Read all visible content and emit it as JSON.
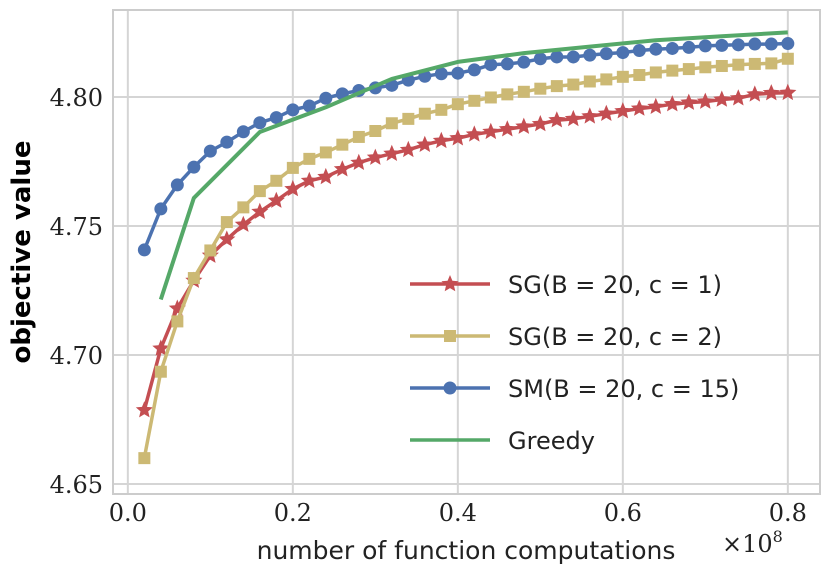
{
  "chart_data": {
    "type": "line",
    "title": "",
    "xlabel": "number of function computations",
    "x_offset_label": "×10",
    "x_offset_exponent": "8",
    "ylabel": "objective value",
    "xlim": [
      -0.018,
      0.839
    ],
    "ylim": [
      4.6461,
      4.8337
    ],
    "xticks": [
      0.0,
      0.2,
      0.4,
      0.6,
      0.8
    ],
    "xtick_labels": [
      "0.0",
      "0.2",
      "0.4",
      "0.6",
      "0.8"
    ],
    "yticks": [
      4.65,
      4.7,
      4.75,
      4.8
    ],
    "ytick_labels": [
      "4.65",
      "4.70",
      "4.75",
      "4.80"
    ],
    "grid": true,
    "legend_placement": "bottom-right",
    "series": [
      {
        "name": "SG(B = 20, c = 1)",
        "color": "#c44e52",
        "marker": "star",
        "x": [
          0.02,
          0.04,
          0.06,
          0.08,
          0.1,
          0.12,
          0.14,
          0.16,
          0.18,
          0.2,
          0.22,
          0.24,
          0.26,
          0.28,
          0.3,
          0.32,
          0.34,
          0.36,
          0.38,
          0.4,
          0.42,
          0.44,
          0.46,
          0.48,
          0.5,
          0.52,
          0.54,
          0.56,
          0.58,
          0.6,
          0.62,
          0.64,
          0.66,
          0.68,
          0.7,
          0.72,
          0.74,
          0.76,
          0.78,
          0.8
        ],
        "y": [
          4.6786,
          4.7025,
          4.718,
          4.7288,
          4.7385,
          4.7448,
          4.7505,
          4.7555,
          4.7598,
          4.7643,
          4.7675,
          4.769,
          4.772,
          4.7745,
          4.7765,
          4.778,
          4.7795,
          4.7815,
          4.783,
          4.784,
          4.7855,
          4.7865,
          4.7875,
          4.7885,
          4.7895,
          4.791,
          4.7915,
          4.7925,
          4.7935,
          4.7945,
          4.7955,
          4.7962,
          4.7972,
          4.7978,
          4.7982,
          4.799,
          4.7995,
          4.801,
          4.8015,
          4.8016
        ]
      },
      {
        "name": "SG(B = 20, c = 2)",
        "color": "#ccb974",
        "marker": "square",
        "x": [
          0.02,
          0.04,
          0.06,
          0.08,
          0.1,
          0.12,
          0.14,
          0.16,
          0.18,
          0.2,
          0.22,
          0.24,
          0.26,
          0.28,
          0.3,
          0.32,
          0.34,
          0.36,
          0.38,
          0.4,
          0.42,
          0.44,
          0.46,
          0.48,
          0.5,
          0.52,
          0.54,
          0.56,
          0.58,
          0.6,
          0.62,
          0.64,
          0.66,
          0.68,
          0.7,
          0.72,
          0.74,
          0.76,
          0.78,
          0.8
        ],
        "y": [
          4.66,
          4.6935,
          4.713,
          4.7298,
          4.7405,
          4.7515,
          4.7572,
          4.7635,
          4.7675,
          4.7725,
          4.776,
          4.7785,
          4.7815,
          4.7845,
          4.7868,
          4.7898,
          4.7915,
          4.7935,
          4.795,
          4.7972,
          4.7985,
          4.7998,
          4.801,
          4.802,
          4.8032,
          4.8042,
          4.8048,
          4.806,
          4.8068,
          4.8078,
          4.8085,
          4.8095,
          4.8102,
          4.8108,
          4.8115,
          4.812,
          4.8125,
          4.8128,
          4.813,
          4.8148
        ]
      },
      {
        "name": "SM(B = 20, c = 15)",
        "color": "#4c72b0",
        "marker": "circle",
        "x": [
          0.02,
          0.04,
          0.06,
          0.08,
          0.1,
          0.12,
          0.14,
          0.16,
          0.18,
          0.2,
          0.22,
          0.24,
          0.26,
          0.28,
          0.3,
          0.32,
          0.34,
          0.36,
          0.38,
          0.4,
          0.42,
          0.44,
          0.46,
          0.48,
          0.5,
          0.52,
          0.54,
          0.56,
          0.58,
          0.6,
          0.62,
          0.64,
          0.66,
          0.68,
          0.7,
          0.72,
          0.74,
          0.76,
          0.78,
          0.8
        ],
        "y": [
          4.7407,
          4.7566,
          4.7659,
          4.7728,
          4.779,
          4.7825,
          4.7865,
          4.79,
          4.792,
          4.795,
          4.7965,
          4.7995,
          4.8012,
          4.8025,
          4.8035,
          4.8045,
          4.8065,
          4.808,
          4.809,
          4.8092,
          4.8105,
          4.8125,
          4.8128,
          4.8135,
          4.8148,
          4.8155,
          4.8155,
          4.8162,
          4.8168,
          4.8172,
          4.818,
          4.8185,
          4.8188,
          4.8192,
          4.8198,
          4.82,
          4.8202,
          4.8205,
          4.8205,
          4.8207
        ]
      },
      {
        "name": "Greedy",
        "color": "#55a868",
        "marker": "none",
        "x": [
          0.04,
          0.08,
          0.16,
          0.24,
          0.32,
          0.4,
          0.48,
          0.56,
          0.64,
          0.72,
          0.8
        ],
        "y": [
          4.7215,
          4.7608,
          4.7864,
          4.796,
          4.807,
          4.8136,
          4.817,
          4.8195,
          4.822,
          4.8235,
          4.825
        ]
      }
    ]
  }
}
